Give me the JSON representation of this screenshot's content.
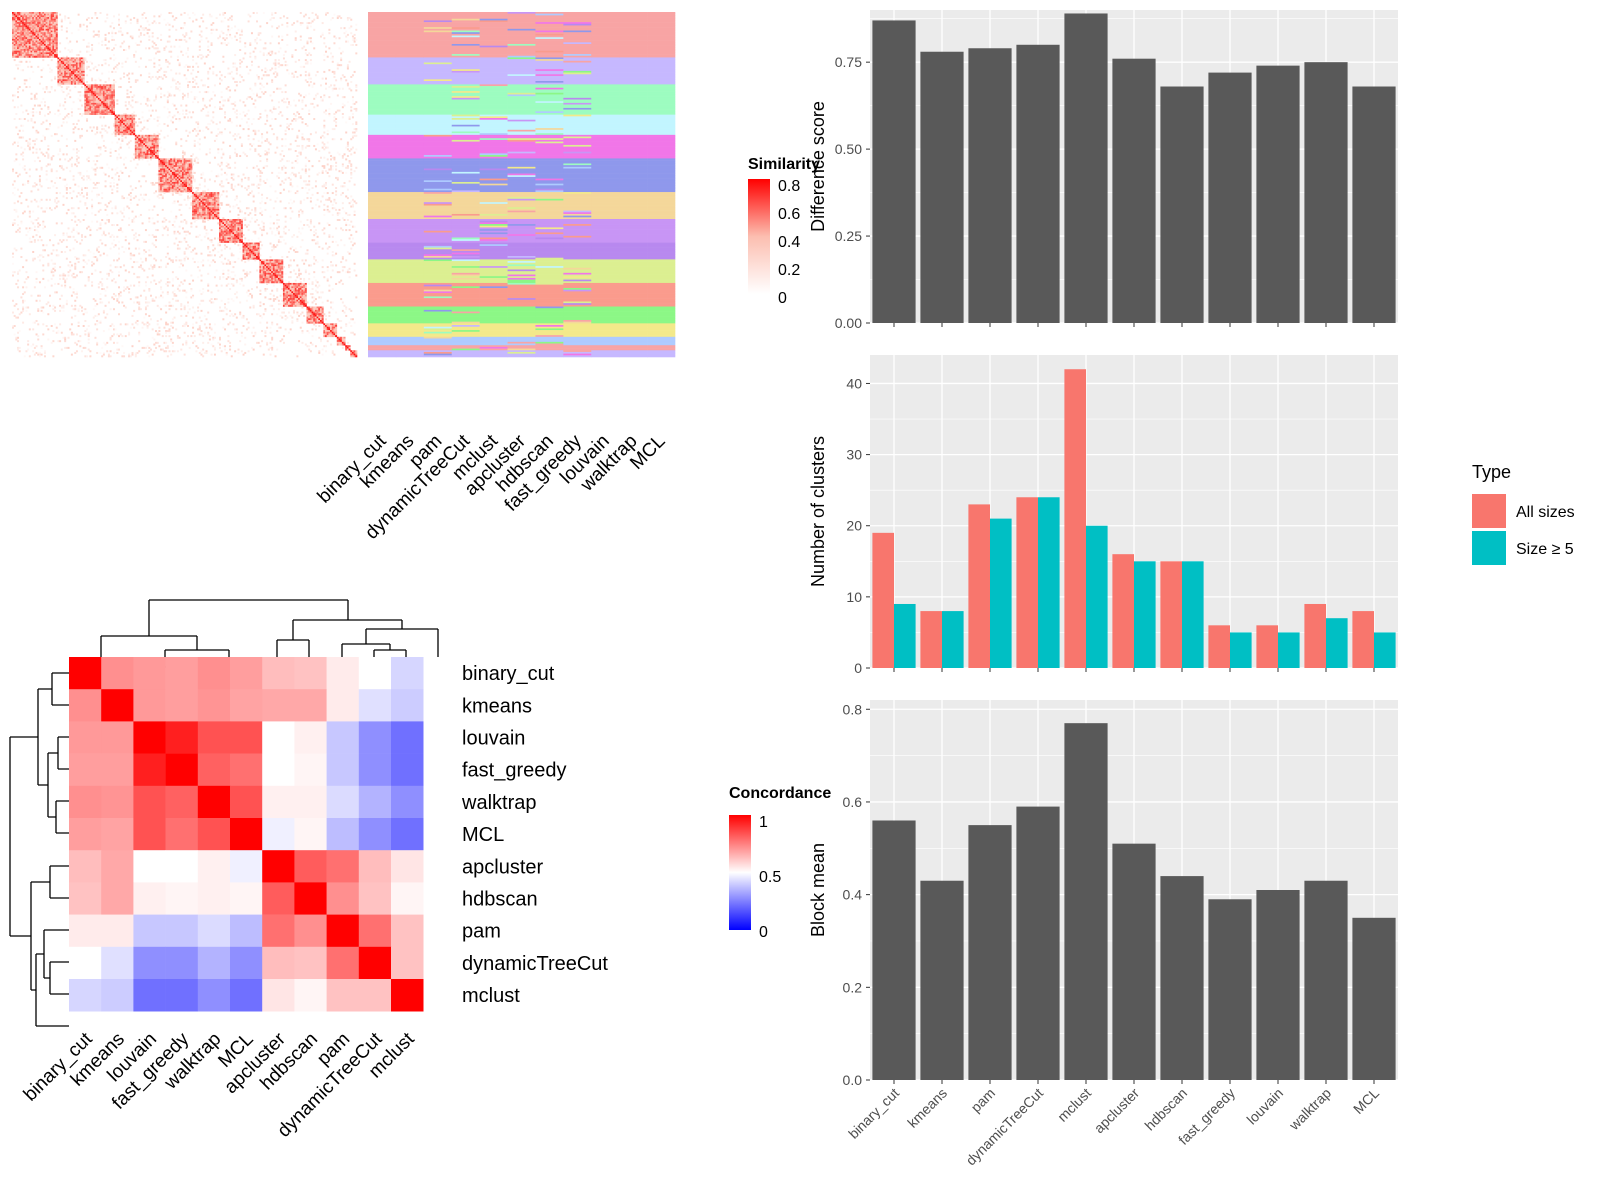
{
  "colors": {
    "panel_bg": "#ebebeb",
    "bar_fill": "#595959",
    "all_sizes": "#f8766d",
    "size_ge_5": "#00bfc4",
    "high": "#ff0000",
    "mid": "#ffffff",
    "low": "#0000ff"
  },
  "chart_data": [
    {
      "type": "heatmap",
      "legend": {
        "title": "Similarity",
        "ticks": [
          "0",
          "0.2",
          "0.4",
          "0.6",
          "0.8"
        ]
      },
      "methods": [
        "binary_cut",
        "kmeans",
        "pam",
        "dynamicTreeCut",
        "mclust",
        "apcluster",
        "hdbscan",
        "fast_greedy",
        "louvain",
        "walktrap",
        "MCL"
      ],
      "block_sizes": [
        27,
        16,
        18,
        12,
        14,
        20,
        16,
        14,
        10,
        14,
        14,
        10,
        8,
        5,
        3,
        4
      ],
      "palette": [
        "#f8a4a4",
        "#c6b8ff",
        "#9dfcc0",
        "#c2f5ff",
        "#f176e8",
        "#8f98ec",
        "#f4d79a",
        "#c895f5",
        "#b889ef",
        "#dcef91",
        "#fa9b8d",
        "#8cf786",
        "#f3e98a",
        "#aecbff"
      ]
    },
    {
      "type": "heatmap",
      "legend": {
        "title": "Concordance",
        "ticks": [
          "0",
          "0.5",
          "1"
        ]
      },
      "labels": [
        "binary_cut",
        "kmeans",
        "louvain",
        "fast_greedy",
        "walktrap",
        "MCL",
        "apcluster",
        "hdbscan",
        "pam",
        "dynamicTreeCut",
        "mclust"
      ],
      "matrix": [
        [
          1.0,
          0.72,
          0.7,
          0.69,
          0.72,
          0.69,
          0.63,
          0.62,
          0.54,
          0.5,
          0.42
        ],
        [
          0.72,
          1.0,
          0.7,
          0.69,
          0.71,
          0.68,
          0.67,
          0.67,
          0.54,
          0.44,
          0.4
        ],
        [
          0.7,
          0.7,
          1.0,
          0.94,
          0.84,
          0.84,
          0.5,
          0.53,
          0.39,
          0.28,
          0.22
        ],
        [
          0.69,
          0.69,
          0.94,
          1.0,
          0.81,
          0.78,
          0.5,
          0.52,
          0.39,
          0.28,
          0.22
        ],
        [
          0.72,
          0.71,
          0.84,
          0.81,
          1.0,
          0.84,
          0.53,
          0.53,
          0.43,
          0.35,
          0.28
        ],
        [
          0.69,
          0.68,
          0.84,
          0.78,
          0.84,
          1.0,
          0.47,
          0.52,
          0.37,
          0.28,
          0.22
        ],
        [
          0.63,
          0.67,
          0.5,
          0.5,
          0.53,
          0.47,
          1.0,
          0.82,
          0.78,
          0.63,
          0.55
        ],
        [
          0.62,
          0.67,
          0.53,
          0.52,
          0.53,
          0.52,
          0.82,
          1.0,
          0.72,
          0.62,
          0.52
        ],
        [
          0.54,
          0.54,
          0.39,
          0.39,
          0.43,
          0.37,
          0.78,
          0.72,
          1.0,
          0.78,
          0.62
        ],
        [
          0.5,
          0.44,
          0.28,
          0.28,
          0.35,
          0.28,
          0.63,
          0.62,
          0.78,
          1.0,
          0.62
        ],
        [
          0.42,
          0.4,
          0.22,
          0.22,
          0.28,
          0.22,
          0.55,
          0.52,
          0.62,
          0.62,
          1.0
        ]
      ]
    },
    {
      "type": "bar",
      "categories": [
        "binary_cut",
        "kmeans",
        "pam",
        "dynamicTreeCut",
        "mclust",
        "apcluster",
        "hdbscan",
        "fast_greedy",
        "louvain",
        "walktrap",
        "MCL"
      ],
      "values": [
        0.87,
        0.78,
        0.79,
        0.8,
        0.89,
        0.76,
        0.68,
        0.72,
        0.74,
        0.75,
        0.68
      ],
      "ylabel": "Difference score",
      "ylim": [
        0,
        0.9
      ],
      "yticks": [
        "0.00",
        "0.25",
        "0.50",
        "0.75"
      ]
    },
    {
      "type": "bar",
      "categories": [
        "binary_cut",
        "kmeans",
        "pam",
        "dynamicTreeCut",
        "mclust",
        "apcluster",
        "hdbscan",
        "fast_greedy",
        "louvain",
        "walktrap",
        "MCL"
      ],
      "series": [
        {
          "name": "All sizes",
          "values": [
            19,
            8,
            23,
            24,
            42,
            16,
            15,
            6,
            6,
            9,
            8
          ]
        },
        {
          "name": "Size ≥ 5",
          "values": [
            9,
            8,
            21,
            24,
            20,
            15,
            15,
            5,
            5,
            7,
            5
          ]
        }
      ],
      "ylabel": "Number of clusters",
      "ylim": [
        0,
        44
      ],
      "yticks": [
        "0",
        "10",
        "20",
        "30",
        "40"
      ],
      "legend": {
        "title": "Type",
        "position": "right"
      }
    },
    {
      "type": "bar",
      "categories": [
        "binary_cut",
        "kmeans",
        "pam",
        "dynamicTreeCut",
        "mclust",
        "apcluster",
        "hdbscan",
        "fast_greedy",
        "louvain",
        "walktrap",
        "MCL"
      ],
      "values": [
        0.56,
        0.43,
        0.55,
        0.59,
        0.77,
        0.51,
        0.44,
        0.39,
        0.41,
        0.43,
        0.35
      ],
      "ylabel": "Block mean",
      "ylim": [
        0,
        0.82
      ],
      "yticks": [
        "0.0",
        "0.2",
        "0.4",
        "0.6",
        "0.8"
      ]
    }
  ]
}
